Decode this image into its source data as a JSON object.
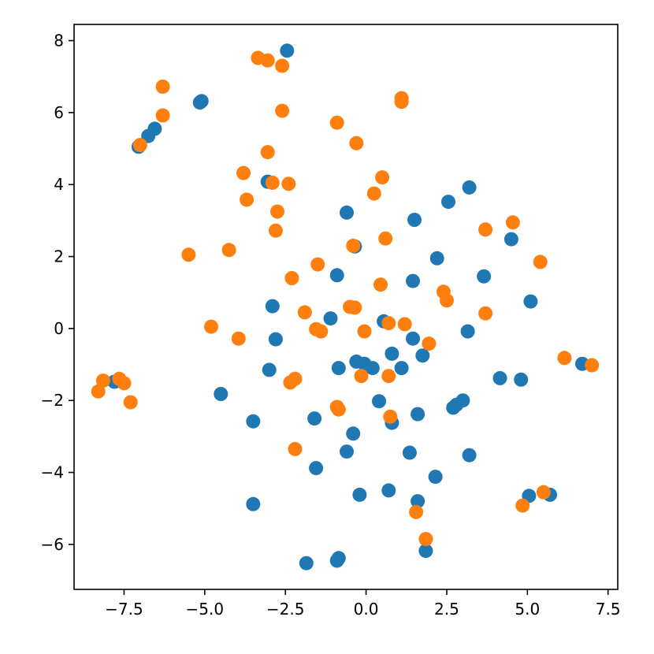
{
  "chart_data": {
    "type": "scatter",
    "title": "",
    "xlabel": "",
    "ylabel": "",
    "xlim": [
      -9.05,
      7.8
    ],
    "ylim": [
      -7.25,
      8.45
    ],
    "grid": false,
    "legend": "none",
    "x_ticks": [
      {
        "value": -7.5,
        "label": "−7.5"
      },
      {
        "value": -5.0,
        "label": "−5.0"
      },
      {
        "value": -2.5,
        "label": "−2.5"
      },
      {
        "value": 0.0,
        "label": "0.0"
      },
      {
        "value": 2.5,
        "label": "2.5"
      },
      {
        "value": 5.0,
        "label": "5.0"
      },
      {
        "value": 7.5,
        "label": "7.5"
      }
    ],
    "y_ticks": [
      {
        "value": -6,
        "label": "−6"
      },
      {
        "value": -4,
        "label": "−4"
      },
      {
        "value": -2,
        "label": "−2"
      },
      {
        "value": 0,
        "label": "0"
      },
      {
        "value": 2,
        "label": "2"
      },
      {
        "value": 4,
        "label": "4"
      },
      {
        "value": 6,
        "label": "6"
      },
      {
        "value": 8,
        "label": "8"
      }
    ],
    "series": [
      {
        "color": "#1f77b4",
        "points": [
          [
            -2.45,
            7.72
          ],
          [
            -5.15,
            6.28
          ],
          [
            -5.1,
            6.32
          ],
          [
            -6.55,
            5.55
          ],
          [
            -6.75,
            5.35
          ],
          [
            -7.05,
            5.05
          ],
          [
            -3.05,
            4.08
          ],
          [
            -0.6,
            3.22
          ],
          [
            -0.35,
            2.28
          ],
          [
            1.5,
            3.02
          ],
          [
            2.55,
            3.52
          ],
          [
            3.2,
            3.92
          ],
          [
            4.5,
            2.48
          ],
          [
            2.2,
            1.95
          ],
          [
            3.65,
            1.45
          ],
          [
            1.45,
            1.32
          ],
          [
            -0.9,
            1.48
          ],
          [
            -2.9,
            0.62
          ],
          [
            -1.1,
            0.28
          ],
          [
            0.55,
            0.2
          ],
          [
            1.45,
            -0.28
          ],
          [
            1.75,
            -0.75
          ],
          [
            0.8,
            -0.7
          ],
          [
            -2.8,
            -0.3
          ],
          [
            -3.0,
            -1.15
          ],
          [
            -0.3,
            -0.92
          ],
          [
            -0.05,
            -0.98
          ],
          [
            0.2,
            -1.1
          ],
          [
            -0.85,
            -1.1
          ],
          [
            1.1,
            -1.1
          ],
          [
            3.15,
            -0.08
          ],
          [
            5.1,
            0.75
          ],
          [
            6.7,
            -0.98
          ],
          [
            4.15,
            -1.38
          ],
          [
            4.8,
            -1.42
          ],
          [
            3.0,
            -2.0
          ],
          [
            2.8,
            -2.12
          ],
          [
            2.7,
            -2.2
          ],
          [
            1.6,
            -2.38
          ],
          [
            0.4,
            -2.02
          ],
          [
            -4.5,
            -1.82
          ],
          [
            -3.5,
            -2.58
          ],
          [
            -1.6,
            -2.5
          ],
          [
            -0.4,
            -2.92
          ],
          [
            0.8,
            -2.62
          ],
          [
            -0.6,
            -3.42
          ],
          [
            1.35,
            -3.45
          ],
          [
            3.2,
            -3.52
          ],
          [
            -1.55,
            -3.88
          ],
          [
            2.15,
            -4.12
          ],
          [
            -0.2,
            -4.62
          ],
          [
            0.7,
            -4.5
          ],
          [
            1.6,
            -4.8
          ],
          [
            5.05,
            -4.65
          ],
          [
            5.7,
            -4.62
          ],
          [
            -3.5,
            -4.88
          ],
          [
            1.85,
            -6.18
          ],
          [
            -0.85,
            -6.38
          ],
          [
            -0.9,
            -6.45
          ],
          [
            -1.85,
            -6.52
          ],
          [
            -7.8,
            -1.48
          ]
        ]
      },
      {
        "color": "#ff7f0e",
        "points": [
          [
            -3.35,
            7.52
          ],
          [
            -3.05,
            7.45
          ],
          [
            -2.6,
            7.3
          ],
          [
            -6.3,
            6.72
          ],
          [
            -6.3,
            5.92
          ],
          [
            -7.0,
            5.1
          ],
          [
            -2.6,
            6.05
          ],
          [
            1.1,
            6.4
          ],
          [
            1.1,
            6.3
          ],
          [
            -0.9,
            5.72
          ],
          [
            -0.3,
            5.15
          ],
          [
            -3.05,
            4.9
          ],
          [
            -3.8,
            4.32
          ],
          [
            -2.9,
            4.05
          ],
          [
            -2.4,
            4.02
          ],
          [
            0.5,
            4.2
          ],
          [
            0.25,
            3.75
          ],
          [
            -3.7,
            3.58
          ],
          [
            -2.75,
            3.25
          ],
          [
            -2.8,
            2.72
          ],
          [
            4.55,
            2.95
          ],
          [
            3.7,
            2.75
          ],
          [
            0.6,
            2.5
          ],
          [
            -0.4,
            2.3
          ],
          [
            -5.5,
            2.05
          ],
          [
            -4.25,
            2.18
          ],
          [
            5.4,
            1.85
          ],
          [
            -1.5,
            1.78
          ],
          [
            -2.3,
            1.4
          ],
          [
            0.45,
            1.22
          ],
          [
            2.4,
            1.02
          ],
          [
            2.5,
            0.78
          ],
          [
            3.7,
            0.42
          ],
          [
            -0.5,
            0.6
          ],
          [
            -0.35,
            0.58
          ],
          [
            -1.9,
            0.45
          ],
          [
            0.7,
            0.15
          ],
          [
            1.2,
            0.12
          ],
          [
            -1.55,
            -0.02
          ],
          [
            -1.4,
            -0.08
          ],
          [
            -0.05,
            -0.08
          ],
          [
            -4.8,
            0.05
          ],
          [
            -3.95,
            -0.28
          ],
          [
            1.95,
            -0.42
          ],
          [
            6.15,
            -0.82
          ],
          [
            7.0,
            -1.02
          ],
          [
            0.7,
            -1.32
          ],
          [
            -0.15,
            -1.32
          ],
          [
            -2.2,
            -1.4
          ],
          [
            -2.35,
            -1.5
          ],
          [
            -7.65,
            -1.4
          ],
          [
            -7.5,
            -1.52
          ],
          [
            -8.15,
            -1.45
          ],
          [
            -8.3,
            -1.75
          ],
          [
            -7.3,
            -2.05
          ],
          [
            -0.9,
            -2.18
          ],
          [
            -0.85,
            -2.25
          ],
          [
            0.75,
            -2.45
          ],
          [
            -2.2,
            -3.35
          ],
          [
            5.5,
            -4.55
          ],
          [
            4.85,
            -4.92
          ],
          [
            1.55,
            -5.1
          ],
          [
            1.85,
            -5.85
          ]
        ]
      }
    ]
  }
}
